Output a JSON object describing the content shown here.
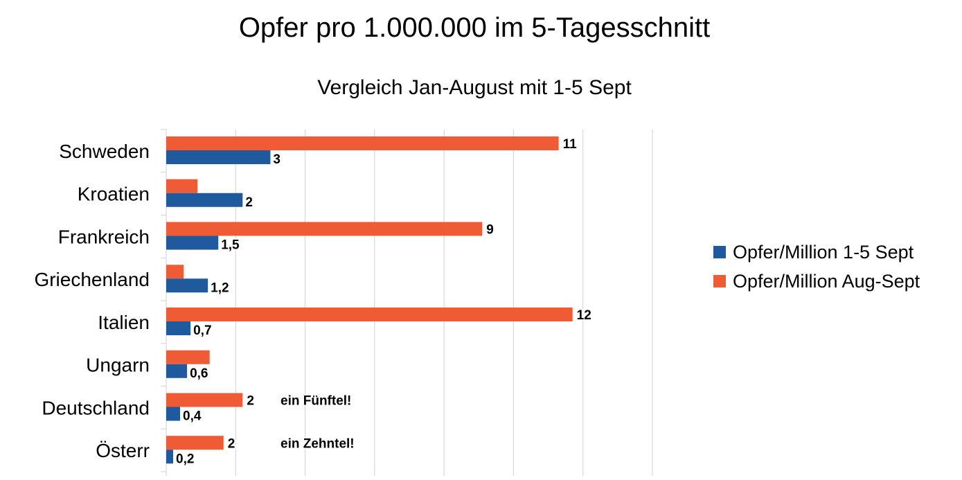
{
  "chart_data": {
    "type": "bar",
    "orientation": "horizontal",
    "title": "Opfer pro 1.000.000  im 5-Tagesschnitt",
    "subtitle": "Vergleich Jan-August   mit   1-5 Sept",
    "categories": [
      "Schweden",
      "Kroatien",
      "Frankreich",
      "Griechenland",
      "Italien",
      "Ungarn",
      "Deutschland",
      "Österr"
    ],
    "series": [
      {
        "name": "Opfer/Million 1-5 Sept",
        "color": "#1f5a9e",
        "values": [
          3,
          2.2,
          1.5,
          1.2,
          0.7,
          0.6,
          0.4,
          0.2
        ],
        "labels": [
          "3",
          "2",
          "1,5",
          "1,2",
          "0,7",
          "0,6",
          "0,4",
          "0,2"
        ]
      },
      {
        "name": "Opfer/Million Aug-Sept",
        "color": "#ee5b35",
        "values": [
          11.3,
          0.9,
          9.1,
          0.5,
          11.7,
          1.25,
          2.2,
          1.65
        ],
        "labels": [
          "11",
          "",
          "9",
          "",
          "12",
          "",
          "2",
          "2"
        ]
      }
    ],
    "annotations": [
      "",
      "",
      "",
      "",
      "",
      "",
      "ein Fünftel!",
      "ein Zehntel!"
    ],
    "xlim": [
      0,
      14
    ],
    "grid": true,
    "legend": "right"
  }
}
